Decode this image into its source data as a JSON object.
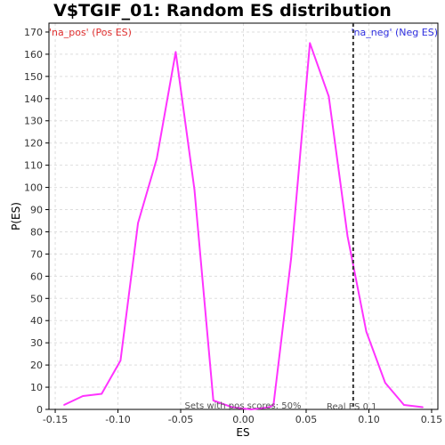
{
  "chart_data": {
    "type": "line",
    "title": "V$TGIF_01: Random ES distribution",
    "xlabel": "ES",
    "ylabel": "P(ES)",
    "xlim": [
      -0.155,
      0.155
    ],
    "ylim": [
      0,
      174
    ],
    "x_ticks": [
      -0.15,
      -0.1,
      -0.05,
      0.0,
      0.05,
      0.1,
      0.15
    ],
    "x_tick_labels": [
      "-0.15",
      "-0.10",
      "-0.05",
      "0.00",
      "0.05",
      "0.10",
      "0.15"
    ],
    "y_ticks": [
      0,
      10,
      20,
      30,
      40,
      50,
      60,
      70,
      80,
      90,
      100,
      110,
      120,
      130,
      140,
      150,
      160,
      170
    ],
    "y_tick_labels": [
      "0",
      "10",
      "20",
      "30",
      "40",
      "50",
      "60",
      "70",
      "80",
      "90",
      "100",
      "110",
      "120",
      "130",
      "140",
      "150",
      "160",
      "170"
    ],
    "grid": true,
    "series": [
      {
        "color": "#ff33ff",
        "x": [
          -0.143,
          -0.128,
          -0.113,
          -0.098,
          -0.084,
          -0.069,
          -0.054,
          -0.039,
          -0.024,
          -0.009,
          0.006,
          0.021,
          0.024,
          0.038,
          0.053,
          0.068,
          0.083,
          0.098,
          0.113,
          0.128,
          0.143
        ],
        "y": [
          2,
          6,
          7,
          22,
          84,
          113,
          161,
          99,
          4,
          1,
          0,
          1,
          2,
          68,
          165,
          141,
          78,
          35,
          12,
          2,
          1
        ]
      }
    ],
    "reference_line": {
      "x": 0.0875,
      "color": "#333333",
      "style": "dashed"
    },
    "corner_labels": {
      "left": "'na_pos' (Pos ES)",
      "right": "'na_neg' (Neg ES)",
      "left_color": "#e03030",
      "right_color": "#3030e0"
    },
    "annotations": {
      "pos_scores": "Sets with pos scores: 50%",
      "real_es": "Real ES 0.1"
    }
  }
}
